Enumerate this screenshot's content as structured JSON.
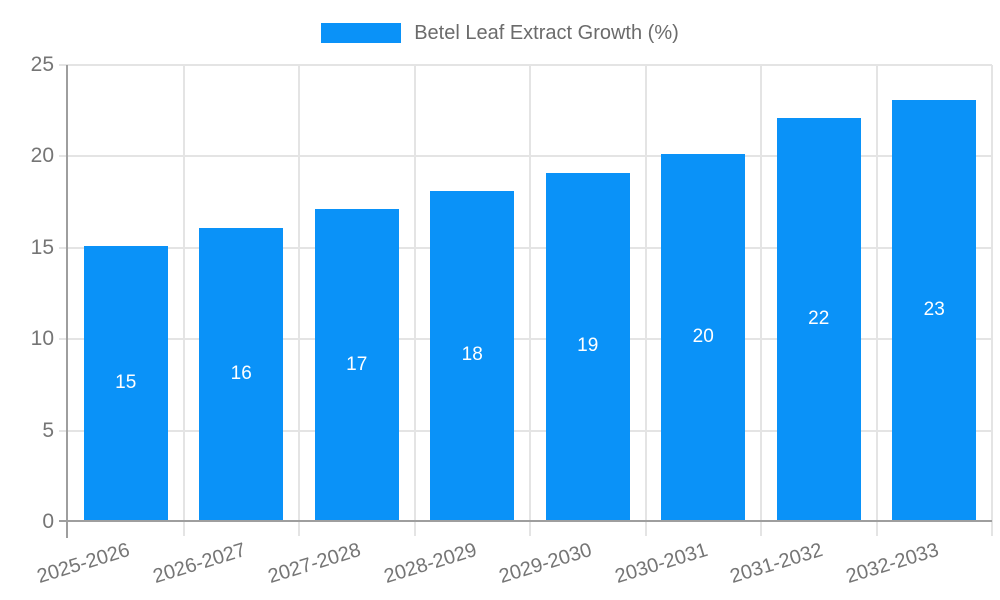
{
  "chart_data": {
    "type": "bar",
    "title": "",
    "series_name": "Betel Leaf Extract Growth (%)",
    "categories": [
      "2025-2026",
      "2026-2027",
      "2027-2028",
      "2028-2029",
      "2029-2030",
      "2030-2031",
      "2031-2032",
      "2032-2033"
    ],
    "values": [
      15,
      16,
      17,
      18,
      19,
      20,
      22,
      23
    ],
    "xlabel": "",
    "ylabel": "",
    "ylim": [
      0,
      25
    ],
    "yticks": [
      0,
      5,
      10,
      15,
      20,
      25
    ],
    "grid": true,
    "legend_position": "top-center",
    "bar_color": "#0a92f8",
    "bar_label_color": "#ffffff",
    "axis_color": "#9e9e9e",
    "gridline_color": "#e4e4e4",
    "tick_label_color": "#757575",
    "legend_text_color": "#6b6b6b",
    "x_label_rotation_deg": -17
  }
}
